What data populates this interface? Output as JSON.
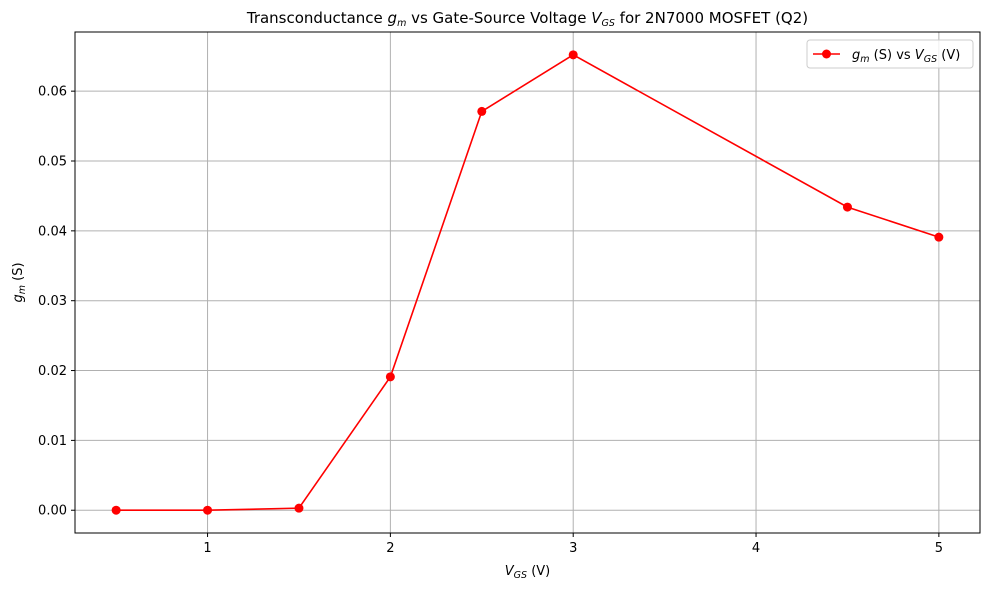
{
  "chart_data": {
    "type": "line",
    "title": {
      "pre": "Transconductance ",
      "var1": "g",
      "var1_sub": "m",
      "mid": " vs Gate-Source Voltage ",
      "var2": "V",
      "var2_sub": "GS",
      "post": " for 2N7000 MOSFET (Q2)"
    },
    "xlabel": {
      "var": "V",
      "sub": "GS",
      "unit": " (V)"
    },
    "ylabel": {
      "var": "g",
      "sub": "m",
      "unit": " (S)"
    },
    "xlim": [
      0.275,
      5.225
    ],
    "ylim": [
      -0.00326,
      0.06847
    ],
    "xticks": [
      1,
      2,
      3,
      4,
      5
    ],
    "xtick_labels": [
      "1",
      "2",
      "3",
      "4",
      "5"
    ],
    "yticks": [
      0.0,
      0.01,
      0.02,
      0.03,
      0.04,
      0.05,
      0.06
    ],
    "ytick_labels": [
      "0.00",
      "0.01",
      "0.02",
      "0.03",
      "0.04",
      "0.05",
      "0.06"
    ],
    "grid": true,
    "legend_position": "top-right",
    "series": [
      {
        "name": {
          "var1": "g",
          "var1_sub": "m",
          "mid": " (S) vs ",
          "var2": "V",
          "var2_sub": "GS",
          "post": " (V)"
        },
        "color": "#ff0000",
        "marker": "circle",
        "x": [
          0.5,
          1.0,
          1.5,
          2.0,
          2.5,
          3.0,
          4.5,
          5.0
        ],
        "y": [
          0.0,
          0.0,
          0.0003,
          0.0191,
          0.0571,
          0.0652,
          0.0434,
          0.0391
        ]
      }
    ]
  }
}
